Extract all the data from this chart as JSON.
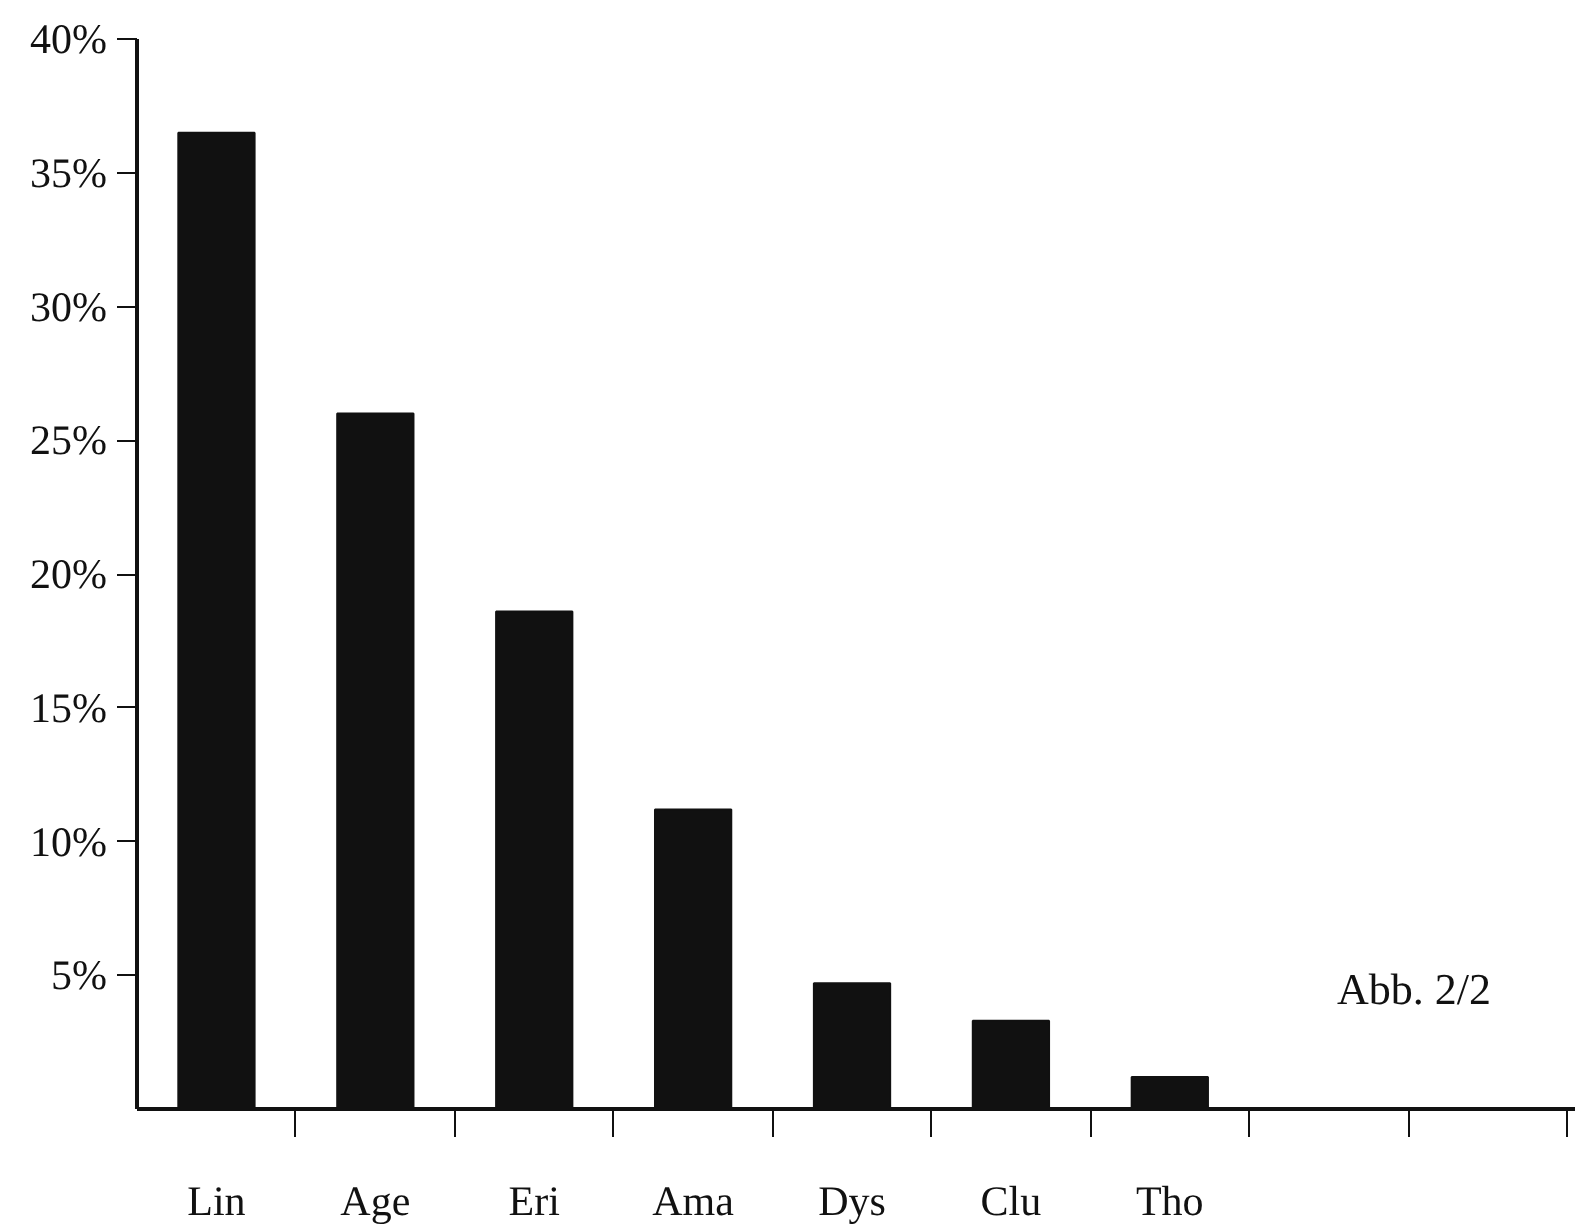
{
  "chart_data": {
    "type": "bar",
    "categories": [
      "Lin",
      "Age",
      "Eri",
      "Ama",
      "Dys",
      "Clu",
      "Tho",
      null,
      null
    ],
    "values": [
      36.5,
      26.0,
      18.6,
      11.2,
      4.7,
      3.3,
      1.2,
      null,
      null
    ],
    "color": "#111111",
    "ylim": [
      0,
      40
    ],
    "yticks": [
      {
        "value": 5,
        "label": "5%"
      },
      {
        "value": 10,
        "label": "10%"
      },
      {
        "value": 15,
        "label": "15%"
      },
      {
        "value": 20,
        "label": "20%"
      },
      {
        "value": 25,
        "label": "25%"
      },
      {
        "value": 30,
        "label": "30%"
      },
      {
        "value": 35,
        "label": "35%"
      },
      {
        "value": 40,
        "label": "40%"
      }
    ],
    "annotations": [
      "Abb. 2/2"
    ],
    "grid": false
  }
}
